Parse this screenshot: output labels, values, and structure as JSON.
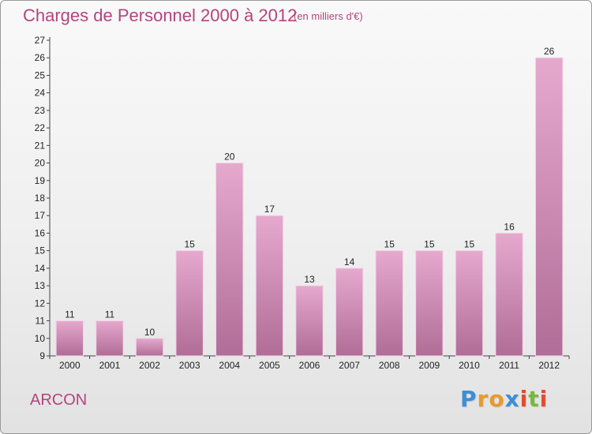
{
  "title": "Charges de Personnel 2000 à 2012",
  "subtitle": "(en milliers d'€)",
  "place": "ARCON",
  "logo": {
    "letters": [
      "P",
      "r",
      "o",
      "x",
      "i",
      "t",
      "i"
    ],
    "colors": [
      "#3b8fd6",
      "#e89a2a",
      "#e89a2a",
      "#3b8fd6",
      "#e44b2c",
      "#7ab83c",
      "#e44b2c"
    ]
  },
  "colors": {
    "bar_light": "#e6a9ce",
    "bar_dark": "#b06d97",
    "accent": "#b3447f"
  },
  "chart_data": {
    "type": "bar",
    "categories": [
      "2000",
      "2001",
      "2002",
      "2003",
      "2004",
      "2005",
      "2006",
      "2007",
      "2008",
      "2009",
      "2010",
      "2011",
      "2012"
    ],
    "values": [
      11,
      11,
      10,
      15,
      20,
      17,
      13,
      14,
      15,
      15,
      15,
      16,
      26
    ],
    "ylim": [
      9,
      27
    ],
    "yticks": [
      9,
      10,
      11,
      12,
      13,
      14,
      15,
      16,
      17,
      18,
      19,
      20,
      21,
      22,
      23,
      24,
      25,
      26,
      27
    ],
    "grid": false,
    "legend": "none"
  }
}
